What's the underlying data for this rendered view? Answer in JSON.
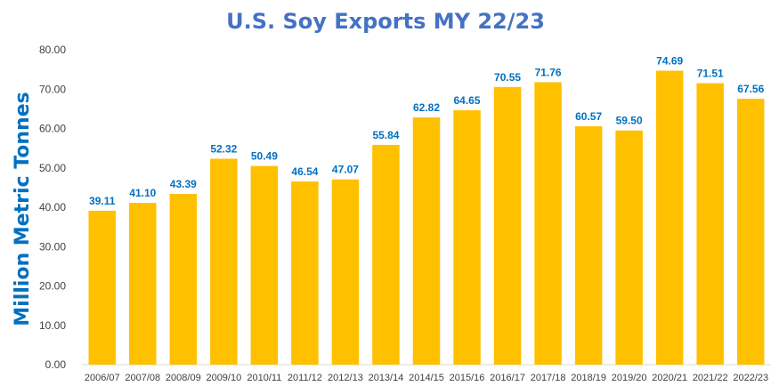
{
  "chart_data": {
    "type": "bar",
    "title": "U.S. Soy Exports MY 22/23",
    "xlabel": "",
    "ylabel": "Million Metric Tonnes",
    "ylim": [
      0,
      80
    ],
    "yticks": [
      "0.00",
      "10.00",
      "20.00",
      "30.00",
      "40.00",
      "50.00",
      "60.00",
      "70.00",
      "80.00"
    ],
    "grid": false,
    "legend": "none",
    "categories": [
      "2006/07",
      "2007/08",
      "2008/09",
      "2009/10",
      "2010/11",
      "2011/12",
      "2012/13",
      "2013/14",
      "2014/15",
      "2015/16",
      "2016/17",
      "2017/18",
      "2018/19",
      "2019/20",
      "2020/21",
      "2021/22",
      "2022/23"
    ],
    "values": [
      39.11,
      41.1,
      43.39,
      52.32,
      50.49,
      46.54,
      47.07,
      55.84,
      62.82,
      64.65,
      70.55,
      71.76,
      60.57,
      59.5,
      74.69,
      71.51,
      67.56
    ],
    "value_labels": [
      "39.11",
      "41.10",
      "43.39",
      "52.32",
      "50.49",
      "46.54",
      "47.07",
      "55.84",
      "62.82",
      "64.65",
      "70.55",
      "71.76",
      "60.57",
      "59.50",
      "74.69",
      "71.51",
      "67.56"
    ],
    "colors": {
      "bar": "#FFC000",
      "data_label": "#0070C0",
      "title": "#4472C4",
      "ylabel": "#0070C0",
      "axis_text": "#404040",
      "axis_line": "#D9D9D9"
    }
  }
}
